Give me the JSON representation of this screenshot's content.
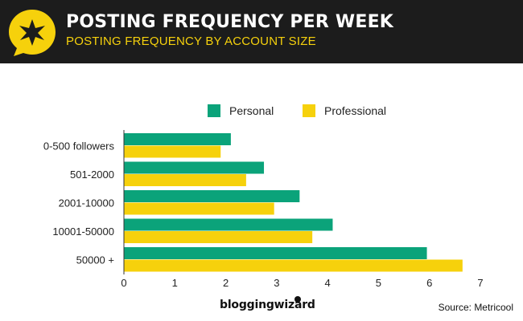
{
  "header": {
    "title": "POSTING FREQUENCY PER WEEK",
    "subtitle": "POSTING FREQUENCY BY ACCOUNT SIZE",
    "logo_icon": "star-speech-bubble-icon"
  },
  "colors": {
    "header_bg": "#1c1c1c",
    "accent_yellow": "#f6d10c",
    "personal": "#0ba37a",
    "professional": "#f6d10c"
  },
  "chart_data": {
    "type": "bar",
    "orientation": "horizontal",
    "categories": [
      "0-500 followers",
      "501-2000",
      "2001-10000",
      "10001-50000",
      "50000 +"
    ],
    "series": [
      {
        "name": "Personal",
        "values": [
          2.1,
          2.75,
          3.45,
          4.1,
          5.95
        ]
      },
      {
        "name": "Professional",
        "values": [
          1.9,
          2.4,
          2.95,
          3.7,
          6.65
        ]
      }
    ],
    "xlim": [
      0,
      7
    ],
    "xticks": [
      0,
      1,
      2,
      3,
      4,
      5,
      6,
      7
    ],
    "legend_position": "top-center",
    "grid": false
  },
  "footer": {
    "brand": "bloggingwizard",
    "source": "Source: Metricool"
  }
}
